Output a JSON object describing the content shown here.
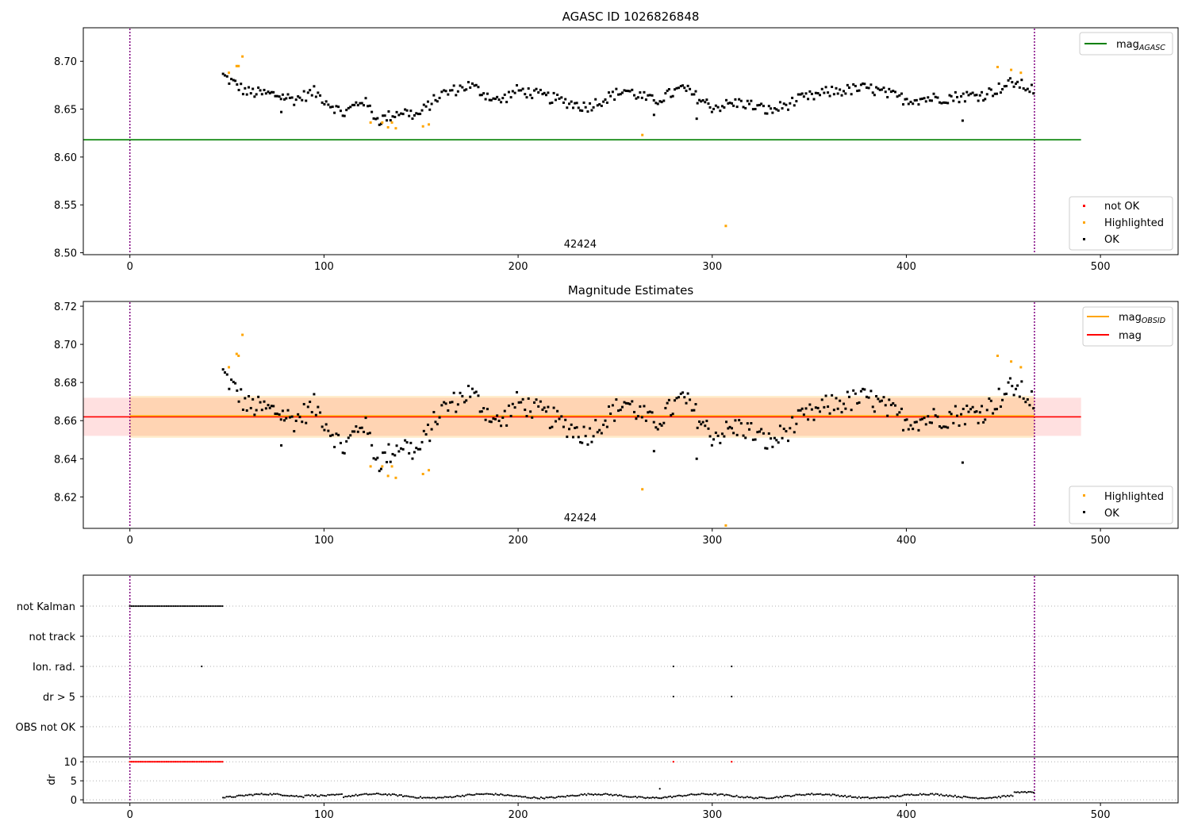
{
  "figure": {
    "title": "AGASC ID 1026826848"
  },
  "chart_data": [
    {
      "type": "scatter",
      "title": "AGASC ID 1026826848",
      "xlim": [
        -24,
        540
      ],
      "ylim": [
        8.498,
        8.735
      ],
      "xticks": [
        0,
        100,
        200,
        300,
        400,
        500
      ],
      "xtick_labels": [
        "0",
        "100",
        "200",
        "300",
        "400",
        "500"
      ],
      "yticks": [
        8.5,
        8.55,
        8.6,
        8.65,
        8.7
      ],
      "ytick_labels": [
        "8.50",
        "8.55",
        "8.60",
        "8.65",
        "8.70"
      ],
      "grid": false,
      "annotation": "42424",
      "annotation_x": 232,
      "vlines": [
        0,
        466
      ],
      "hline": {
        "name": "mag_AGASC",
        "label_main": "mag",
        "label_sub": "AGASC",
        "y": 8.618,
        "xrange": [
          -24,
          490
        ],
        "color": "#008000"
      },
      "highlighted": [
        [
          51,
          8.688
        ],
        [
          55,
          8.695
        ],
        [
          56,
          8.695
        ],
        [
          58,
          8.705
        ],
        [
          124,
          8.636
        ],
        [
          130,
          8.636
        ],
        [
          133,
          8.631
        ],
        [
          135,
          8.636
        ],
        [
          137,
          8.63
        ],
        [
          151,
          8.632
        ],
        [
          154,
          8.634
        ],
        [
          264,
          8.623
        ],
        [
          307,
          8.528
        ],
        [
          447,
          8.694
        ],
        [
          454,
          8.691
        ],
        [
          459,
          8.688
        ]
      ],
      "legend_lines": {
        "position": "upper right",
        "entries": [
          "mag_AGASC"
        ]
      },
      "legend_points": {
        "position": "lower right",
        "entries": [
          {
            "label": "not OK",
            "color": "#ff0000"
          },
          {
            "label": "Highlighted",
            "color": "#ffa500"
          },
          {
            "label": "OK",
            "color": "#000000"
          }
        ]
      },
      "colors": {
        "ok": "#000000",
        "highlighted": "#ffa500",
        "not_ok": "#ff0000",
        "vline": "#800080"
      }
    },
    {
      "type": "scatter",
      "title": "Magnitude Estimates",
      "xlim": [
        -24,
        540
      ],
      "ylim": [
        8.6035,
        8.7225
      ],
      "xticks": [
        0,
        100,
        200,
        300,
        400,
        500
      ],
      "xtick_labels": [
        "0",
        "100",
        "200",
        "300",
        "400",
        "500"
      ],
      "yticks": [
        8.62,
        8.64,
        8.66,
        8.68,
        8.7,
        8.72
      ],
      "ytick_labels": [
        "8.62",
        "8.64",
        "8.66",
        "8.68",
        "8.70",
        "8.72"
      ],
      "grid": false,
      "annotation": "42424",
      "annotation_x": 232,
      "vlines": [
        0,
        466
      ],
      "mag_line": {
        "label": "mag",
        "y": 8.662,
        "xrange": [
          -24,
          490
        ],
        "band": [
          8.652,
          8.672
        ],
        "color": "#ff0000"
      },
      "obsid_line": {
        "label_main": "mag",
        "label_sub": "OBSID",
        "y": 8.6625,
        "xrange": [
          0,
          466
        ],
        "band": [
          8.651,
          8.673
        ],
        "color": "#ffa500"
      },
      "highlighted": [
        [
          51,
          8.688
        ],
        [
          55,
          8.695
        ],
        [
          56,
          8.694
        ],
        [
          58,
          8.705
        ],
        [
          124,
          8.636
        ],
        [
          130,
          8.636
        ],
        [
          133,
          8.631
        ],
        [
          135,
          8.636
        ],
        [
          137,
          8.63
        ],
        [
          151,
          8.632
        ],
        [
          154,
          8.634
        ],
        [
          264,
          8.624
        ],
        [
          307,
          8.605
        ],
        [
          447,
          8.694
        ],
        [
          454,
          8.691
        ],
        [
          459,
          8.688
        ]
      ],
      "legend_lines": {
        "position": "upper right",
        "entries": [
          "mag_OBSID",
          "mag"
        ]
      },
      "legend_points": {
        "position": "lower right",
        "entries": [
          {
            "label": "Highlighted",
            "color": "#ffa500"
          },
          {
            "label": "OK",
            "color": "#000000"
          }
        ]
      }
    },
    {
      "type": "scatter",
      "title": "",
      "xlim": [
        -24,
        540
      ],
      "categories": [
        "not Kalman",
        "not track",
        "Ion. rad.",
        "dr > 5",
        "OBS not OK"
      ],
      "grid": true,
      "vlines": [
        0,
        466
      ],
      "flags": {
        "not Kalman": {
          "x_range": [
            0,
            48
          ]
        },
        "not track": {
          "points": []
        },
        "Ion. rad.": {
          "points": [
            37,
            280,
            310
          ]
        },
        "dr > 5": {
          "points": [
            280,
            310
          ]
        },
        "OBS not OK": {
          "points": []
        }
      }
    },
    {
      "type": "scatter",
      "title": "",
      "ylabel": "dr",
      "xlim": [
        -24,
        540
      ],
      "ylim": [
        -0.8,
        11.3
      ],
      "xticks": [
        0,
        100,
        200,
        300,
        400,
        500
      ],
      "xtick_labels": [
        "0",
        "100",
        "200",
        "300",
        "400",
        "500"
      ],
      "yticks": [
        0,
        5,
        10
      ],
      "ytick_labels": [
        "0",
        "5",
        "10"
      ],
      "grid": true,
      "vlines": [
        0,
        466
      ],
      "capped_value": 10,
      "capped_x_range": [
        0,
        48
      ],
      "capped_extra": [
        280,
        310
      ],
      "dr_spike": [
        273,
        2.9
      ],
      "dr_range": [
        48,
        466
      ]
    }
  ]
}
